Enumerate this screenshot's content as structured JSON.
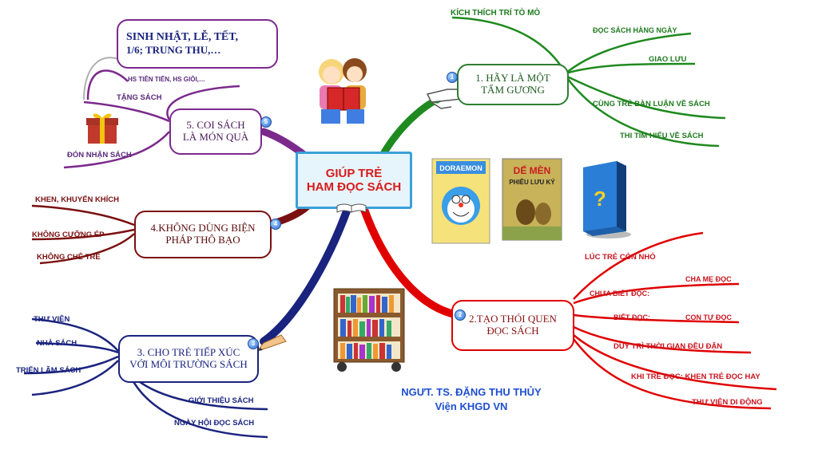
{
  "center": {
    "line1": "GIÚP TRẺ",
    "line2": "HAM ĐỌC SÁCH"
  },
  "author": {
    "name": "NGƯT. TS. ĐẶNG THU THỦY",
    "org": "Viện KHGD VN"
  },
  "branch1": {
    "badge": "1",
    "line1": "1. HÃY LÀ MỘT",
    "line2": "TẤM GƯƠNG",
    "items": [
      "KÍCH THÍCH TRÍ TÒ MÒ",
      "ĐỌC SÁCH HÀNG NGÀY",
      "GIAO LƯU",
      "CÙNG TRẺ BÀN LUẬN VỀ SÁCH",
      "THI TÌM HIỂU VỀ SÁCH"
    ]
  },
  "branch2": {
    "badge": "2",
    "line1": "2.TẠO THÓI QUEN",
    "line2": "ĐỌC SÁCH",
    "items": [
      "LÚC TRẺ CÒN NHỎ",
      "CHƯA BIẾT ĐỌC:",
      "CHA MẸ ĐỌC",
      "BIẾT ĐỌC:",
      "CON TỰ ĐỌC",
      "DUY TRÌ THỜI GIAN ĐỀU ĐẶN",
      "KHI TRẺ ĐỌC: KHEN TRẺ ĐỌC HAY",
      "THƯ VIỆN DI ĐỘNG"
    ]
  },
  "branch3": {
    "badge": "3",
    "line1": "3. CHO TRẺ TIẾP XÚC",
    "line2": "VỚI MÔI TRƯỜNG SÁCH",
    "items": [
      "THƯ VIỆN",
      "NHÀ SÁCH",
      "TRIỂN LÃM SÁCH",
      "…",
      "GIỚI THIỆU SÁCH",
      "NGÀY HỘI ĐỌC SÁCH"
    ]
  },
  "branch4": {
    "badge": "4",
    "line1": "4.KHÔNG DÙNG BIỆN",
    "line2": "PHÁP THÔ BẠO",
    "items": [
      "KHEN, KHUYẾN KHÍCH",
      "KHÔNG CƯỠNG ÉP",
      "KHÔNG CHÊ TRẺ"
    ]
  },
  "branch5": {
    "badge": "5",
    "line1": "5. COI SÁCH",
    "line2": "LÀ MÓN QUÀ",
    "items": [
      "HS TIÊN TIẾN, HS GIỎI,…",
      "TẶNG SÁCH",
      "ĐÓN NHẬN SÁCH"
    ],
    "callout_line1": "SINH NHẬT, LỄ, TẾT,",
    "callout_line2": "1/6; TRUNG THU,…"
  },
  "books": {
    "doraemon": "DORAEMON",
    "demen_line1": "DẾ MÈN",
    "demen_line2": "PHIÊU LƯU KÝ",
    "question": "?"
  },
  "colors": {
    "green": "#1f7a1f",
    "red": "#e00000",
    "navy": "#1a237e",
    "purple": "#7b2a8c",
    "maroon": "#7a1010",
    "center_border": "#3aa0d8",
    "center_text": "#d81b1b"
  }
}
